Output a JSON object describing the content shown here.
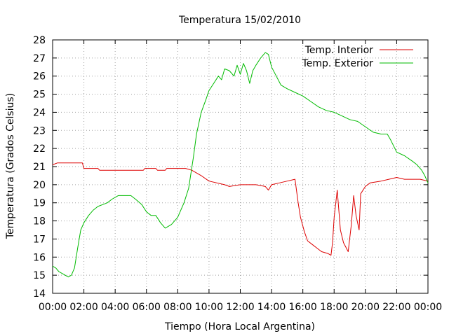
{
  "chart_data": {
    "type": "line",
    "title": "Temperatura 15/02/2010",
    "xlabel": "Tiempo (Hora Local Argentina)",
    "ylabel": "Temperatura (Grados Celsius)",
    "x_unit": "hours",
    "xlim": [
      0,
      24
    ],
    "ylim": [
      14,
      28
    ],
    "x_tick_labels": [
      "00:00",
      "02:00",
      "04:00",
      "06:00",
      "08:00",
      "10:00",
      "12:00",
      "14:00",
      "16:00",
      "18:00",
      "20:00",
      "22:00",
      "00:00"
    ],
    "y_ticks": [
      14,
      15,
      16,
      17,
      18,
      19,
      20,
      21,
      22,
      23,
      24,
      25,
      26,
      27,
      28
    ],
    "grid": true,
    "legend_position": "top-right",
    "series": [
      {
        "name": "Temp. Interior",
        "color": "#dd0000",
        "x": [
          0,
          0.3,
          1.9,
          2.0,
          2.9,
          3.0,
          5.8,
          5.9,
          6.6,
          6.7,
          7.2,
          7.3,
          8.5,
          8.9,
          9.5,
          10.0,
          11.0,
          11.3,
          12.0,
          12.5,
          13.0,
          13.6,
          13.8,
          14.0,
          14.5,
          15.0,
          15.5,
          15.7,
          15.85,
          16.1,
          16.3,
          16.6,
          16.9,
          17.2,
          17.6,
          17.8,
          17.9,
          18.0,
          18.2,
          18.4,
          18.6,
          18.9,
          19.1,
          19.25,
          19.4,
          19.6,
          19.7,
          20.0,
          20.3,
          21.0,
          21.5,
          22.0,
          22.5,
          23.0,
          23.5,
          24.0
        ],
        "values": [
          21.1,
          21.2,
          21.2,
          20.9,
          20.9,
          20.8,
          20.8,
          20.9,
          20.9,
          20.8,
          20.8,
          20.9,
          20.9,
          20.8,
          20.5,
          20.2,
          20.0,
          19.9,
          20.0,
          20.0,
          20.0,
          19.9,
          19.7,
          20.0,
          20.1,
          20.2,
          20.3,
          19.0,
          18.2,
          17.4,
          16.9,
          16.7,
          16.5,
          16.3,
          16.2,
          16.1,
          16.8,
          18.2,
          19.7,
          17.5,
          16.8,
          16.3,
          17.8,
          19.4,
          18.3,
          17.5,
          19.5,
          19.9,
          20.1,
          20.2,
          20.3,
          20.4,
          20.3,
          20.3,
          20.3,
          20.2
        ]
      },
      {
        "name": "Temp. Exterior",
        "color": "#00bb00",
        "x": [
          0,
          0.2,
          0.4,
          0.6,
          0.8,
          1.0,
          1.2,
          1.4,
          1.6,
          1.8,
          2.0,
          2.3,
          2.6,
          2.9,
          3.2,
          3.5,
          3.8,
          4.2,
          4.6,
          5.0,
          5.3,
          5.7,
          6.0,
          6.3,
          6.6,
          6.9,
          7.2,
          7.6,
          8.0,
          8.4,
          8.7,
          9.0,
          9.2,
          9.5,
          9.8,
          10.0,
          10.3,
          10.6,
          10.8,
          11.0,
          11.3,
          11.6,
          11.8,
          12.0,
          12.2,
          12.4,
          12.6,
          12.8,
          13.0,
          13.3,
          13.6,
          13.8,
          14.0,
          14.3,
          14.6,
          15.0,
          15.5,
          16.0,
          16.5,
          17.0,
          17.5,
          18.0,
          18.5,
          19.0,
          19.5,
          20.0,
          20.5,
          21.0,
          21.4,
          21.6,
          22.0,
          22.5,
          23.0,
          23.3,
          23.6,
          23.8,
          24.0
        ],
        "values": [
          15.5,
          15.4,
          15.2,
          15.1,
          15.0,
          14.9,
          15.0,
          15.4,
          16.5,
          17.5,
          17.9,
          18.3,
          18.6,
          18.8,
          18.9,
          19.0,
          19.2,
          19.4,
          19.4,
          19.4,
          19.2,
          18.9,
          18.5,
          18.3,
          18.3,
          17.9,
          17.6,
          17.8,
          18.2,
          19.0,
          19.8,
          21.5,
          22.8,
          24.0,
          24.7,
          25.2,
          25.6,
          26.0,
          25.8,
          26.4,
          26.3,
          26.0,
          26.6,
          26.1,
          26.7,
          26.3,
          25.6,
          26.3,
          26.6,
          27.0,
          27.3,
          27.2,
          26.5,
          26.0,
          25.5,
          25.3,
          25.1,
          24.9,
          24.6,
          24.3,
          24.1,
          24.0,
          23.8,
          23.6,
          23.5,
          23.2,
          22.9,
          22.8,
          22.8,
          22.5,
          21.8,
          21.6,
          21.3,
          21.1,
          20.8,
          20.5,
          20.1
        ]
      }
    ]
  }
}
